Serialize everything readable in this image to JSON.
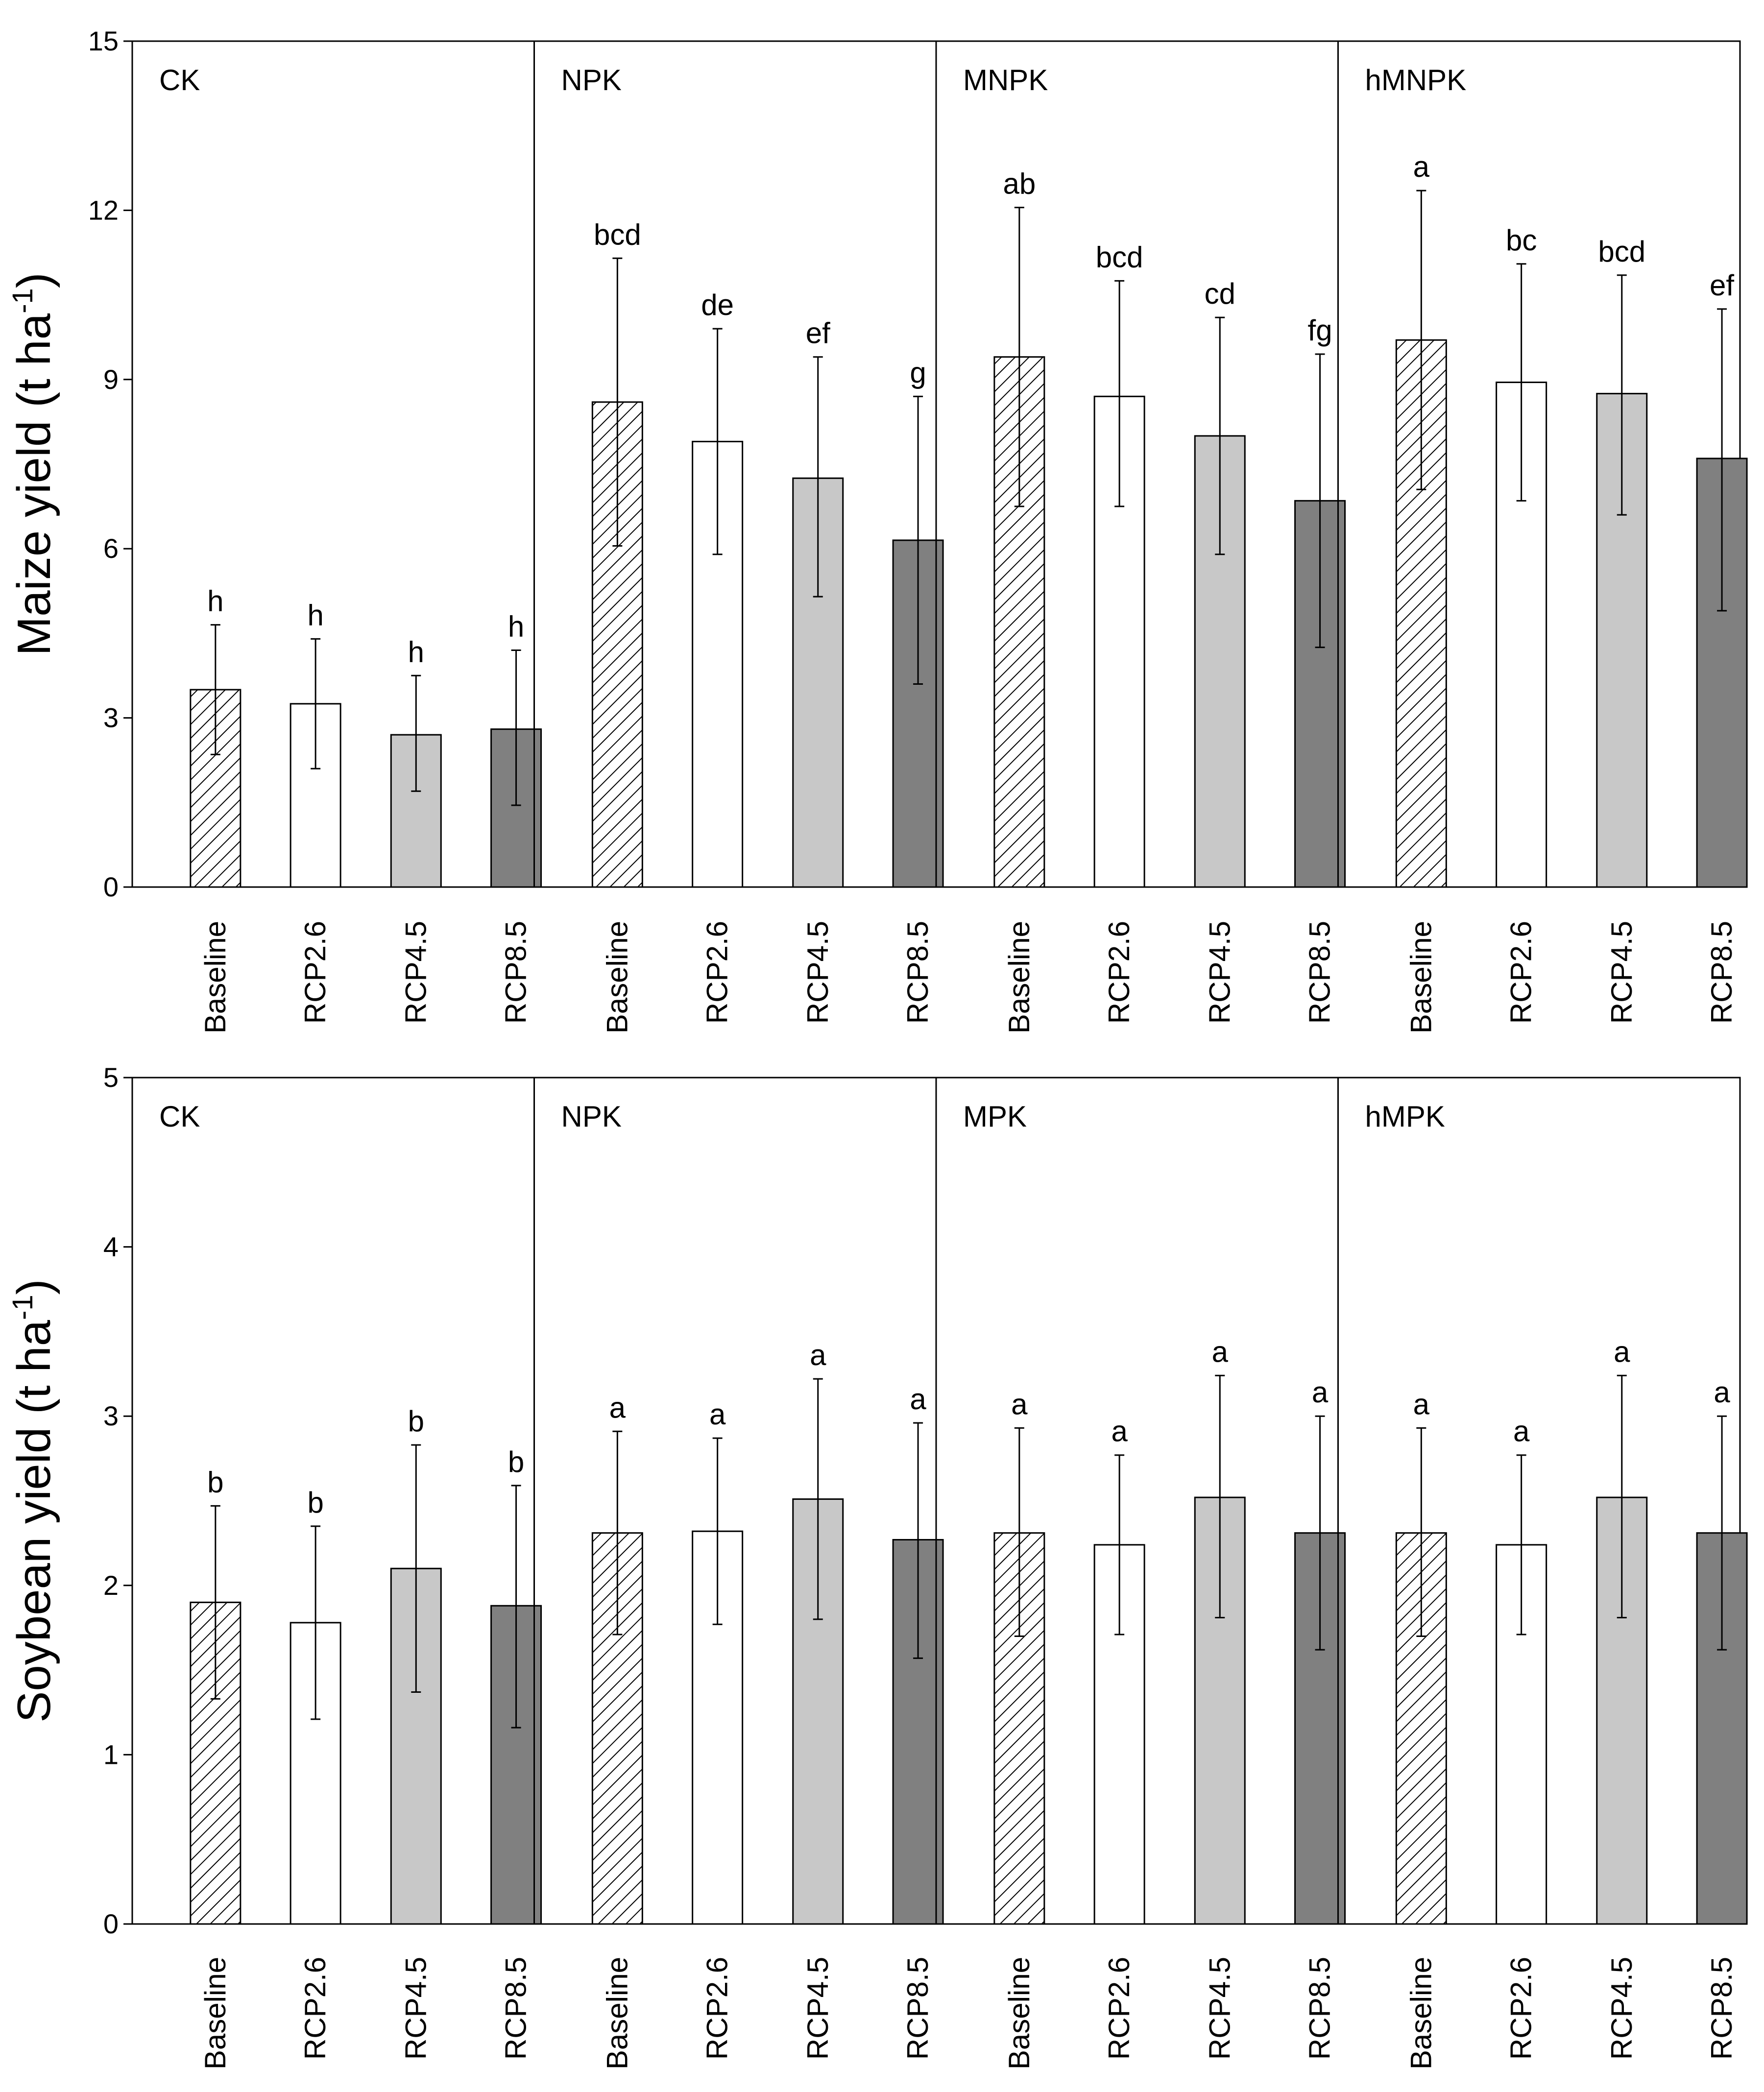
{
  "chart_data": [
    {
      "type": "bar",
      "ylabel": "Maize yield (t ha",
      "ylabel_unit_superscript": "-1",
      "ylabel_close": ")",
      "ylim": [
        0,
        15
      ],
      "yticks": [
        "0",
        "3",
        "6",
        "9",
        "12",
        "15"
      ],
      "ytick_values": [
        0,
        3,
        6,
        9,
        12,
        15
      ],
      "categories": [
        "Baseline",
        "RCP2.6",
        "RCP4.5",
        "RCP8.5"
      ],
      "series_styles": [
        {
          "name": "Baseline",
          "fill": "hatched",
          "color": "#ffffff"
        },
        {
          "name": "RCP2.6",
          "fill": "solid",
          "color": "#ffffff"
        },
        {
          "name": "RCP4.5",
          "fill": "solid",
          "color": "#c8c8c8"
        },
        {
          "name": "RCP8.5",
          "fill": "solid",
          "color": "#808080"
        }
      ],
      "groups": [
        {
          "name": "CK",
          "values": [
            3.5,
            3.25,
            2.7,
            2.8
          ],
          "err_low": [
            2.35,
            2.1,
            1.7,
            1.45
          ],
          "err_high": [
            4.65,
            4.4,
            3.75,
            4.2
          ],
          "sig": [
            "h",
            "h",
            "h",
            "h"
          ]
        },
        {
          "name": "NPK",
          "values": [
            8.6,
            7.9,
            7.25,
            6.15
          ],
          "err_low": [
            6.05,
            5.9,
            5.15,
            3.6
          ],
          "err_high": [
            11.15,
            9.9,
            9.4,
            8.7
          ],
          "sig": [
            "bcd",
            "de",
            "ef",
            "g"
          ]
        },
        {
          "name": "MNPK",
          "values": [
            9.4,
            8.7,
            8.0,
            6.85
          ],
          "err_low": [
            6.75,
            6.75,
            5.9,
            4.25
          ],
          "err_high": [
            12.05,
            10.75,
            10.1,
            9.45
          ],
          "sig": [
            "ab",
            "bcd",
            "cd",
            "fg"
          ]
        },
        {
          "name": "hMNPK",
          "values": [
            9.7,
            8.95,
            8.75,
            7.6
          ],
          "err_low": [
            7.05,
            6.85,
            6.6,
            4.9
          ],
          "err_high": [
            12.35,
            11.05,
            10.85,
            10.25
          ],
          "sig": [
            "a",
            "bc",
            "bcd",
            "ef"
          ]
        }
      ]
    },
    {
      "type": "bar",
      "ylabel": "Soybean yield (t ha",
      "ylabel_unit_superscript": "-1",
      "ylabel_close": ")",
      "ylim": [
        0,
        5
      ],
      "yticks": [
        "0",
        "1",
        "2",
        "3",
        "4",
        "5"
      ],
      "ytick_values": [
        0,
        1,
        2,
        3,
        4,
        5
      ],
      "categories": [
        "Baseline",
        "RCP2.6",
        "RCP4.5",
        "RCP8.5"
      ],
      "series_styles": [
        {
          "name": "Baseline",
          "fill": "hatched",
          "color": "#ffffff"
        },
        {
          "name": "RCP2.6",
          "fill": "solid",
          "color": "#ffffff"
        },
        {
          "name": "RCP4.5",
          "fill": "solid",
          "color": "#c8c8c8"
        },
        {
          "name": "RCP8.5",
          "fill": "solid",
          "color": "#808080"
        }
      ],
      "groups": [
        {
          "name": "CK",
          "values": [
            1.9,
            1.78,
            2.1,
            1.88
          ],
          "err_low": [
            1.33,
            1.21,
            1.37,
            1.16
          ],
          "err_high": [
            2.47,
            2.35,
            2.83,
            2.59
          ],
          "sig": [
            "b",
            "b",
            "b",
            "b"
          ]
        },
        {
          "name": "NPK",
          "values": [
            2.31,
            2.32,
            2.51,
            2.27
          ],
          "err_low": [
            1.71,
            1.77,
            1.8,
            1.57
          ],
          "err_high": [
            2.91,
            2.87,
            3.22,
            2.96
          ],
          "sig": [
            "a",
            "a",
            "a",
            "a"
          ]
        },
        {
          "name": "MPK",
          "values": [
            2.31,
            2.24,
            2.52,
            2.31
          ],
          "err_low": [
            1.7,
            1.71,
            1.81,
            1.62
          ],
          "err_high": [
            2.93,
            2.77,
            3.24,
            3.0
          ],
          "sig": [
            "a",
            "a",
            "a",
            "a"
          ]
        },
        {
          "name": "hMPK",
          "values": [
            2.31,
            2.24,
            2.52,
            2.31
          ],
          "err_low": [
            1.7,
            1.71,
            1.81,
            1.62
          ],
          "err_high": [
            2.93,
            2.77,
            3.24,
            3.0
          ],
          "sig": [
            "a",
            "a",
            "a",
            "a"
          ]
        }
      ]
    }
  ]
}
